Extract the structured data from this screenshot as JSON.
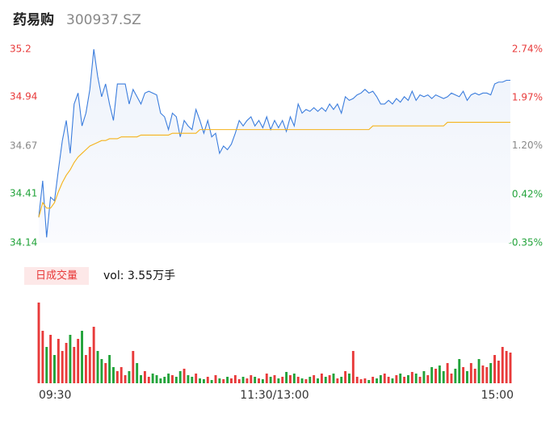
{
  "header": {
    "name": "药易购",
    "code": "300937.SZ"
  },
  "chart_data": {
    "type": "line",
    "ylim": [
      34.14,
      35.2
    ],
    "yticks": [
      34.14,
      34.41,
      34.67,
      34.94,
      35.2
    ],
    "y2lim": [
      -0.35,
      2.74
    ],
    "y2ticks": [
      {
        "value": -0.35,
        "label": "-0.35%"
      },
      {
        "value": 0.42,
        "label": "0.42%"
      },
      {
        "value": 1.2,
        "label": "1.20%"
      },
      {
        "value": 1.97,
        "label": "1.97%"
      },
      {
        "value": 2.74,
        "label": "2.74%"
      }
    ],
    "xlim": [
      0,
      120
    ],
    "xticks": [
      {
        "value": 0,
        "label": "09:30"
      },
      {
        "value": 60,
        "label": "11:30/13:00"
      },
      {
        "value": 120,
        "label": "15:00"
      }
    ],
    "series": [
      {
        "color": "#3b7ddd",
        "values": [
          34.28,
          34.48,
          34.17,
          34.39,
          34.37,
          34.54,
          34.7,
          34.81,
          34.63,
          34.9,
          34.96,
          34.78,
          34.85,
          34.98,
          35.2,
          35.05,
          34.94,
          35.01,
          34.9,
          34.81,
          35.01,
          35.01,
          35.01,
          34.9,
          34.98,
          34.94,
          34.9,
          34.96,
          34.97,
          34.96,
          34.95,
          34.85,
          34.83,
          34.76,
          34.85,
          34.83,
          34.72,
          34.81,
          34.78,
          34.76,
          34.87,
          34.81,
          34.74,
          34.81,
          34.72,
          34.74,
          34.63,
          34.67,
          34.65,
          34.68,
          34.74,
          34.81,
          34.78,
          34.81,
          34.83,
          34.78,
          34.81,
          34.77,
          34.83,
          34.76,
          34.81,
          34.77,
          34.81,
          34.75,
          34.83,
          34.78,
          34.9,
          34.85,
          34.87,
          34.86,
          34.88,
          34.86,
          34.88,
          34.86,
          34.9,
          34.87,
          34.9,
          34.85,
          34.94,
          34.92,
          34.93,
          34.95,
          34.96,
          34.98,
          34.96,
          34.97,
          34.94,
          34.9,
          34.9,
          34.92,
          34.9,
          34.93,
          34.91,
          34.94,
          34.92,
          34.97,
          34.92,
          34.95,
          34.94,
          34.95,
          34.93,
          34.95,
          34.94,
          34.93,
          34.94,
          34.96,
          34.95,
          34.94,
          34.97,
          34.92,
          34.95,
          34.96,
          34.95,
          34.96,
          34.96,
          34.95,
          35.01,
          35.02,
          35.02,
          35.03,
          35.03
        ]
      },
      {
        "color": "#f5b31a",
        "values": [
          34.28,
          34.36,
          34.33,
          34.33,
          34.36,
          34.42,
          34.47,
          34.51,
          34.54,
          34.58,
          34.61,
          34.63,
          34.65,
          34.67,
          34.68,
          34.69,
          34.7,
          34.7,
          34.71,
          34.71,
          34.71,
          34.72,
          34.72,
          34.72,
          34.72,
          34.72,
          34.73,
          34.73,
          34.73,
          34.73,
          34.73,
          34.73,
          34.73,
          34.73,
          34.74,
          34.74,
          34.74,
          34.74,
          34.74,
          34.74,
          34.74,
          34.76,
          34.76,
          34.76,
          34.76,
          34.76,
          34.76,
          34.76,
          34.76,
          34.76,
          34.76,
          34.76,
          34.76,
          34.76,
          34.76,
          34.76,
          34.76,
          34.76,
          34.76,
          34.76,
          34.76,
          34.76,
          34.76,
          34.76,
          34.76,
          34.76,
          34.76,
          34.76,
          34.76,
          34.76,
          34.76,
          34.76,
          34.76,
          34.76,
          34.76,
          34.76,
          34.76,
          34.76,
          34.76,
          34.76,
          34.76,
          34.76,
          34.76,
          34.76,
          34.76,
          34.78,
          34.78,
          34.78,
          34.78,
          34.78,
          34.78,
          34.78,
          34.78,
          34.78,
          34.78,
          34.78,
          34.78,
          34.78,
          34.78,
          34.78,
          34.78,
          34.78,
          34.78,
          34.78,
          34.8,
          34.8,
          34.8,
          34.8,
          34.8,
          34.8,
          34.8,
          34.8,
          34.8,
          34.8,
          34.8,
          34.8,
          34.8,
          34.8,
          34.8,
          34.8,
          34.8
        ]
      }
    ]
  },
  "volume": {
    "title": "日成交量",
    "label": "vol: 3.55万手",
    "ylim": [
      0,
      105
    ],
    "up_color": "#e83a3a",
    "down_color": "#22a33a",
    "values": [
      100,
      65,
      45,
      60,
      35,
      55,
      40,
      50,
      60,
      45,
      55,
      65,
      35,
      45,
      70,
      40,
      30,
      25,
      35,
      20,
      15,
      20,
      10,
      15,
      40,
      25,
      10,
      15,
      8,
      12,
      10,
      6,
      8,
      12,
      10,
      8,
      15,
      18,
      10,
      8,
      12,
      6,
      5,
      8,
      4,
      10,
      6,
      5,
      8,
      6,
      10,
      5,
      8,
      6,
      10,
      8,
      6,
      5,
      12,
      8,
      10,
      6,
      8,
      14,
      10,
      12,
      8,
      6,
      5,
      8,
      10,
      6,
      12,
      8,
      10,
      12,
      6,
      8,
      15,
      12,
      40,
      8,
      5,
      6,
      4,
      8,
      6,
      10,
      12,
      8,
      6,
      10,
      12,
      8,
      10,
      14,
      12,
      8,
      15,
      10,
      20,
      18,
      22,
      15,
      25,
      12,
      18,
      30,
      20,
      15,
      25,
      18,
      30,
      22,
      20,
      25,
      35,
      28,
      45,
      40,
      38
    ]
  }
}
